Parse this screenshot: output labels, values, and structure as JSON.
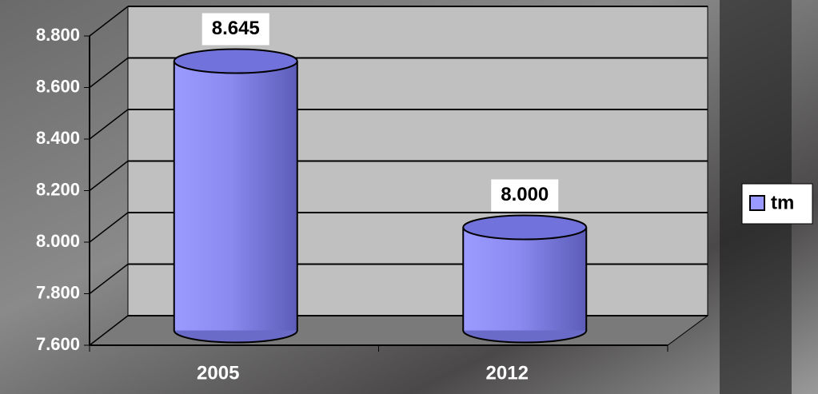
{
  "chart_data": {
    "type": "bar",
    "categories": [
      "2005",
      "2012"
    ],
    "series": [
      {
        "name": "tm",
        "color": "#9999ff",
        "values": [
          8645,
          8000
        ],
        "value_labels": [
          "8.645",
          "8.000"
        ]
      }
    ],
    "ylim": [
      7600,
      8800
    ],
    "yticks": [
      {
        "value": 7600,
        "label": "7.600"
      },
      {
        "value": 7800,
        "label": "7.800"
      },
      {
        "value": 8000,
        "label": "8.000"
      },
      {
        "value": 8200,
        "label": "8.200"
      },
      {
        "value": 8400,
        "label": "8.400"
      },
      {
        "value": 8600,
        "label": "8.600"
      },
      {
        "value": 8800,
        "label": "8.800"
      }
    ],
    "grid": true,
    "legend": "right"
  }
}
